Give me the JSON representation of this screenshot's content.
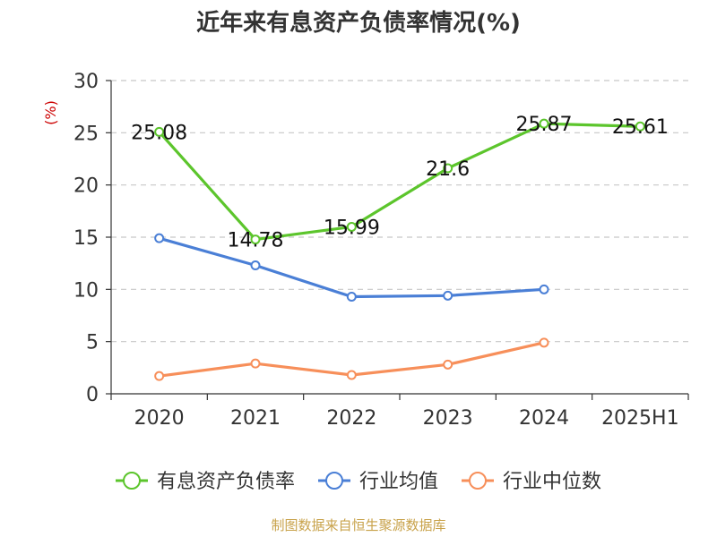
{
  "chart_data": {
    "type": "line",
    "title": "近年来有息资产负债率情况(%)",
    "ylabel": "(%)",
    "xlabel": "",
    "categories": [
      "2020",
      "2021",
      "2022",
      "2023",
      "2024",
      "2025H1"
    ],
    "ylim": [
      0,
      30
    ],
    "yticks": [
      0,
      5,
      10,
      15,
      20,
      25,
      30
    ],
    "grid": true,
    "legend_position": "bottom",
    "series": [
      {
        "name": "有息资产负债率",
        "color": "#5cc52c",
        "values": [
          25.08,
          14.78,
          15.99,
          21.6,
          25.87,
          25.61
        ],
        "labels": [
          "25.08",
          "14.78",
          "15.99",
          "21.6",
          "25.87",
          "25.61"
        ]
      },
      {
        "name": "行业均值",
        "color": "#4a7fd6",
        "values": [
          14.9,
          12.3,
          9.3,
          9.4,
          10.0,
          null
        ],
        "labels": []
      },
      {
        "name": "行业中位数",
        "color": "#f78f5a",
        "values": [
          1.7,
          2.9,
          1.8,
          2.8,
          4.9,
          null
        ],
        "labels": []
      }
    ]
  },
  "source": "制图数据来自恒生聚源数据库"
}
